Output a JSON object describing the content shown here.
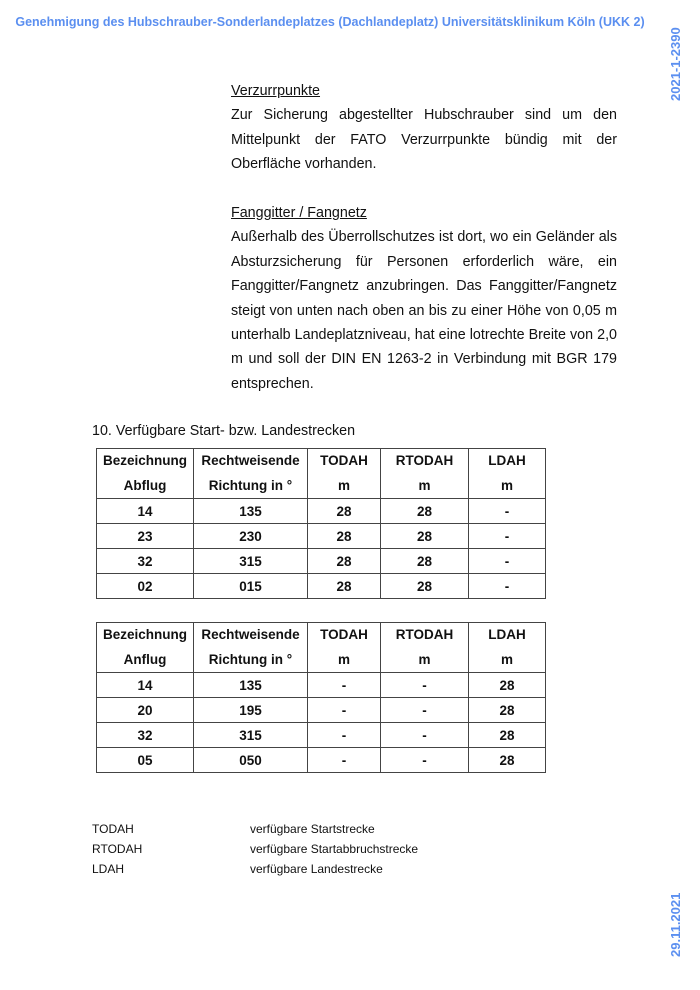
{
  "header": "Genehmigung des Hubschrauber-Sonderlandeplatzes (Dachlandeplatz) Universitätsklinikum Köln (UKK 2)",
  "side_ref": "2021-1-2390",
  "side_date": "29.11.2021",
  "sections": [
    {
      "title": "Verzurrpunkte",
      "text": "Zur Sicherung abgestellter Hubschrauber sind um den Mittelpunkt der FATO Verzurrpunkte bündig mit der Oberfläche vorhanden."
    },
    {
      "title": "Fanggitter / Fangnetz",
      "text": "Außerhalb des Überrollschutzes ist dort, wo ein Geländer als Absturzsicherung für Personen erforderlich wäre, ein Fanggitter/Fangnetz anzubringen. Das Fanggitter/Fangnetz steigt von unten nach oben an bis zu einer Höhe von 0,05 m unterhalb Landeplatzniveau, hat eine lotrechte Breite von 2,0 m und soll der DIN EN 1263-2 in Verbindung mit BGR 179 entsprechen."
    }
  ],
  "heading10": "10. Verfügbare Start- bzw. Landestrecken",
  "table_abflug": {
    "headers": [
      [
        "Bezeichnung",
        "Abflug"
      ],
      [
        "Rechtweisende",
        "Richtung in °"
      ],
      [
        "TODAH",
        "m"
      ],
      [
        "RTODAH",
        "m"
      ],
      [
        "LDAH",
        "m"
      ]
    ],
    "rows": [
      [
        "14",
        "135",
        "28",
        "28",
        "-"
      ],
      [
        "23",
        "230",
        "28",
        "28",
        "-"
      ],
      [
        "32",
        "315",
        "28",
        "28",
        "-"
      ],
      [
        "02",
        "015",
        "28",
        "28",
        "-"
      ]
    ]
  },
  "table_anflug": {
    "headers": [
      [
        "Bezeichnung",
        "Anflug"
      ],
      [
        "Rechtweisende",
        "Richtung in °"
      ],
      [
        "TODAH",
        "m"
      ],
      [
        "RTODAH",
        "m"
      ],
      [
        "LDAH",
        "m"
      ]
    ],
    "rows": [
      [
        "14",
        "135",
        "-",
        "-",
        "28"
      ],
      [
        "20",
        "195",
        "-",
        "-",
        "28"
      ],
      [
        "32",
        "315",
        "-",
        "-",
        "28"
      ],
      [
        "05",
        "050",
        "-",
        "-",
        "28"
      ]
    ]
  },
  "legend": [
    [
      "TODAH",
      "verfügbare Startstrecke"
    ],
    [
      "RTODAH",
      "verfügbare Startabbruchstrecke"
    ],
    [
      "LDAH",
      "verfügbare Landestrecke"
    ]
  ]
}
